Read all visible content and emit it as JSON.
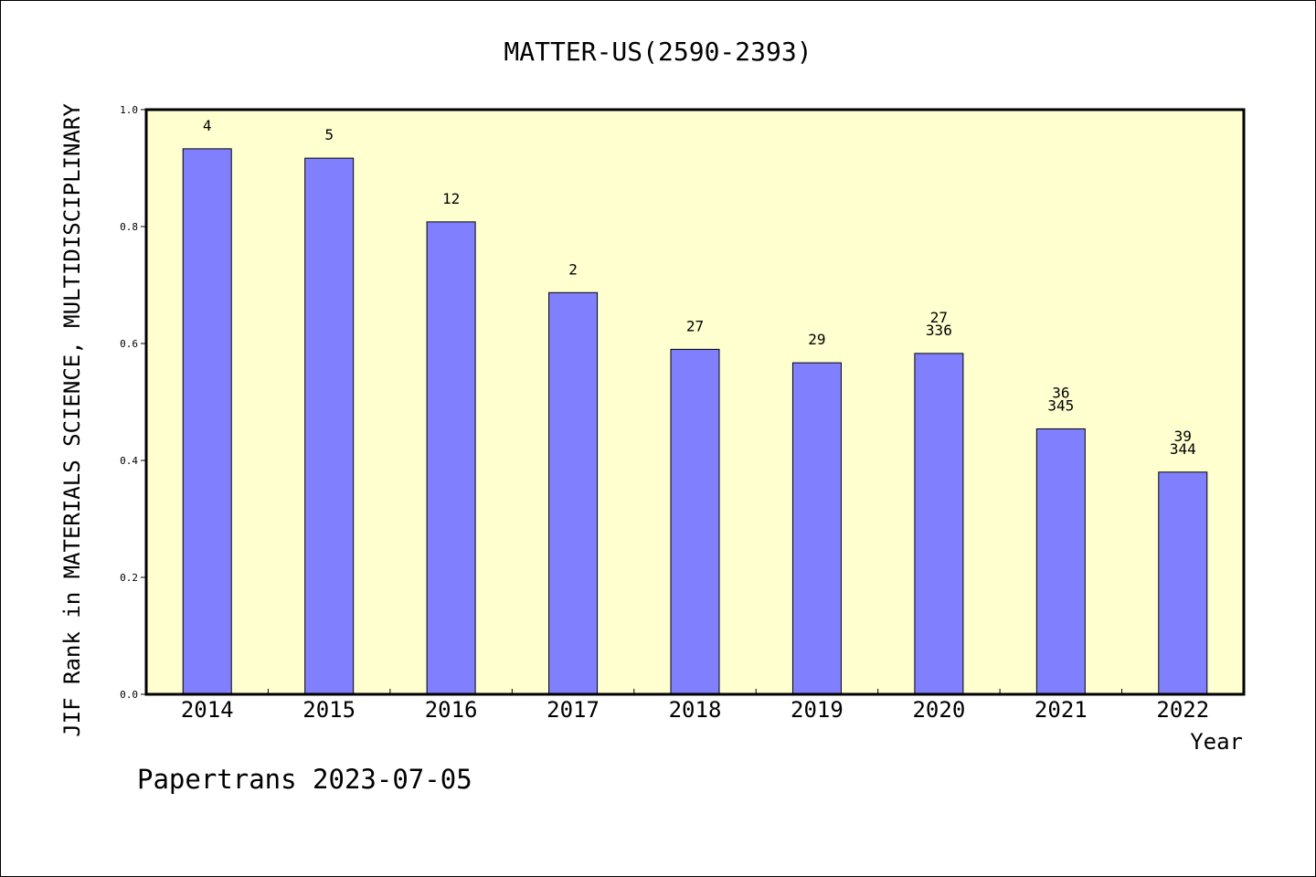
{
  "chart_data": {
    "type": "bar",
    "title": "MATTER-US(2590-2393)",
    "xlabel": "Year",
    "ylabel": "JIF Rank in MATERIALS SCIENCE, MULTIDISCIPLINARY",
    "ylim": [
      0,
      1.0
    ],
    "yticks": [
      "0.0",
      "0.2",
      "0.4",
      "0.6",
      "0.8",
      "1.0"
    ],
    "categories": [
      "2014",
      "2015",
      "2016",
      "2017",
      "2018",
      "2019",
      "2020",
      "2021",
      "2022"
    ],
    "values": [
      0.933,
      0.917,
      0.808,
      0.687,
      0.59,
      0.567,
      0.583,
      0.454,
      0.38
    ],
    "bar_labels": [
      [
        "4"
      ],
      [
        "5"
      ],
      [
        "12"
      ],
      [
        "2"
      ],
      [
        "27"
      ],
      [
        "29"
      ],
      [
        "27",
        "336"
      ],
      [
        "36",
        "345"
      ],
      [
        "39",
        "344"
      ]
    ],
    "colors": {
      "bar": "#8080ff",
      "plot_background": "#ffffd0"
    },
    "grid": false
  },
  "footer": "Papertrans 2023-07-05"
}
